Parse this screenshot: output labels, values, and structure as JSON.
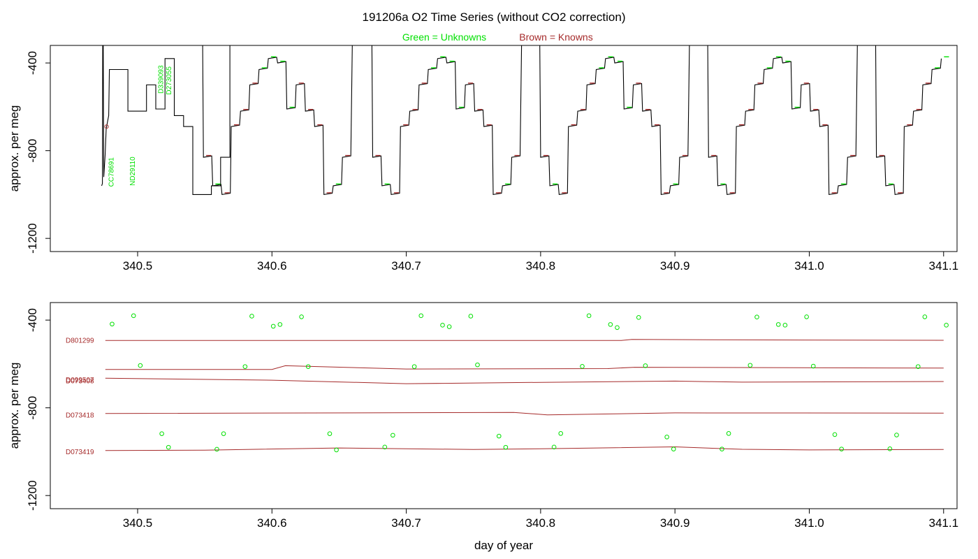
{
  "title": "191206a   O2 Time Series (without CO2 correction)",
  "legend": {
    "unknowns": "Green = Unknowns",
    "knowns": "Brown = Knowns",
    "unknowns_color": "#00e000",
    "knowns_color": "#a52a2a"
  },
  "chart_data": [
    {
      "type": "line",
      "panel": "top",
      "xlabel": "",
      "ylabel": "approx. per meg",
      "xlim": [
        340.435,
        341.11
      ],
      "ylim": [
        -1260,
        -320
      ],
      "y_reversed": true,
      "x_ticks": [
        "340.5",
        "340.6",
        "340.7",
        "340.8",
        "340.9",
        "341.0",
        "341.1"
      ],
      "y_ticks": [
        "-400",
        "-800",
        "-1200"
      ],
      "grid": false,
      "series_color": "#000000",
      "annotations": [
        {
          "text": "CC78691",
          "x": 340.482,
          "y": -965,
          "color": "#00e000"
        },
        {
          "text": "ND29110",
          "x": 340.498,
          "y": -960,
          "color": "#00e000"
        },
        {
          "text": "D339093",
          "x": 340.519,
          "y": -540,
          "color": "#00e000"
        },
        {
          "text": "D273055",
          "x": 340.525,
          "y": -545,
          "color": "#00e000"
        }
      ],
      "cycles": [
        {
          "start": 340.474,
          "partial": true
        },
        {
          "start": 340.549
        },
        {
          "start": 340.675
        },
        {
          "start": 340.8
        },
        {
          "start": 340.925
        },
        {
          "start": 341.05,
          "truncated": true
        }
      ],
      "cycle_levels": [
        -830,
        -960,
        -1000,
        -690,
        -620,
        -500,
        -430,
        -380,
        -400,
        -610,
        -500,
        -620,
        -690,
        -1000,
        -960,
        -830
      ]
    },
    {
      "type": "scatter",
      "panel": "bottom",
      "xlabel": "day of year",
      "ylabel": "approx. per meg",
      "xlim": [
        340.435,
        341.11
      ],
      "ylim": [
        -1260,
        -320
      ],
      "y_reversed": true,
      "x_ticks": [
        "340.5",
        "340.6",
        "340.7",
        "340.8",
        "340.9",
        "341.0",
        "341.1"
      ],
      "y_ticks": [
        "-400",
        "-800",
        "-1200"
      ],
      "grid": false,
      "known_series": [
        {
          "name": "D801299",
          "points": [
            [
              340.476,
              -493
            ],
            [
              340.86,
              -493
            ],
            [
              340.868,
              -488
            ],
            [
              340.95,
              -490
            ],
            [
              341.1,
              -492
            ]
          ]
        },
        {
          "name": "D099507",
          "points": [
            [
              340.476,
              -625
            ],
            [
              340.6,
              -625
            ],
            [
              340.61,
              -608
            ],
            [
              340.7,
              -623
            ],
            [
              340.85,
              -621
            ],
            [
              340.87,
              -615
            ],
            [
              341.1,
              -619
            ]
          ]
        },
        {
          "name": "D073408",
          "points": [
            [
              340.476,
              -665
            ],
            [
              340.6,
              -674
            ],
            [
              340.7,
              -690
            ],
            [
              340.8,
              -684
            ],
            [
              340.9,
              -678
            ],
            [
              340.95,
              -683
            ],
            [
              341.1,
              -680
            ]
          ]
        },
        {
          "name": "D073418",
          "points": [
            [
              340.476,
              -826
            ],
            [
              340.78,
              -821
            ],
            [
              340.805,
              -832
            ],
            [
              340.9,
              -823
            ],
            [
              341.1,
              -824
            ]
          ]
        },
        {
          "name": "D073419",
          "points": [
            [
              340.476,
              -995
            ],
            [
              340.55,
              -993
            ],
            [
              340.65,
              -983
            ],
            [
              340.75,
              -990
            ],
            [
              340.8,
              -987
            ],
            [
              340.9,
              -978
            ],
            [
              340.95,
              -989
            ],
            [
              341.0,
              -992
            ],
            [
              341.1,
              -990
            ]
          ]
        }
      ],
      "known_labels": [
        {
          "text": "D801299",
          "y": -490
        },
        {
          "text": "D099507",
          "y": -671
        },
        {
          "text": "D073408",
          "y": -676
        },
        {
          "text": "D073418",
          "y": -831
        },
        {
          "text": "D073419",
          "y": -998
        }
      ],
      "unknown_points": [
        [
          340.481,
          -418
        ],
        [
          340.497,
          -380
        ],
        [
          340.502,
          -607
        ],
        [
          340.518,
          -918
        ],
        [
          340.523,
          -980
        ],
        [
          340.559,
          -989
        ],
        [
          340.564,
          -918
        ],
        [
          340.58,
          -612
        ],
        [
          340.585,
          -382
        ],
        [
          340.601,
          -428
        ],
        [
          340.606,
          -420
        ],
        [
          340.622,
          -385
        ],
        [
          340.627,
          -612
        ],
        [
          340.643,
          -918
        ],
        [
          340.648,
          -992
        ],
        [
          340.684,
          -979
        ],
        [
          340.69,
          -925
        ],
        [
          340.706,
          -612
        ],
        [
          340.711,
          -380
        ],
        [
          340.727,
          -423
        ],
        [
          340.732,
          -430
        ],
        [
          340.748,
          -382
        ],
        [
          340.753,
          -604
        ],
        [
          340.769,
          -929
        ],
        [
          340.774,
          -980
        ],
        [
          340.81,
          -979
        ],
        [
          340.815,
          -917
        ],
        [
          340.831,
          -611
        ],
        [
          340.836,
          -380
        ],
        [
          340.852,
          -420
        ],
        [
          340.857,
          -434
        ],
        [
          340.873,
          -388
        ],
        [
          340.878,
          -608
        ],
        [
          340.894,
          -933
        ],
        [
          340.899,
          -988
        ],
        [
          340.935,
          -988
        ],
        [
          340.94,
          -917
        ],
        [
          340.956,
          -606
        ],
        [
          340.961,
          -386
        ],
        [
          340.977,
          -420
        ],
        [
          340.982,
          -423
        ],
        [
          340.998,
          -385
        ],
        [
          341.003,
          -610
        ],
        [
          341.019,
          -922
        ],
        [
          341.024,
          -988
        ],
        [
          341.06,
          -987
        ],
        [
          341.065,
          -924
        ],
        [
          341.081,
          -612
        ],
        [
          341.086,
          -385
        ],
        [
          341.102,
          -423
        ]
      ]
    }
  ]
}
